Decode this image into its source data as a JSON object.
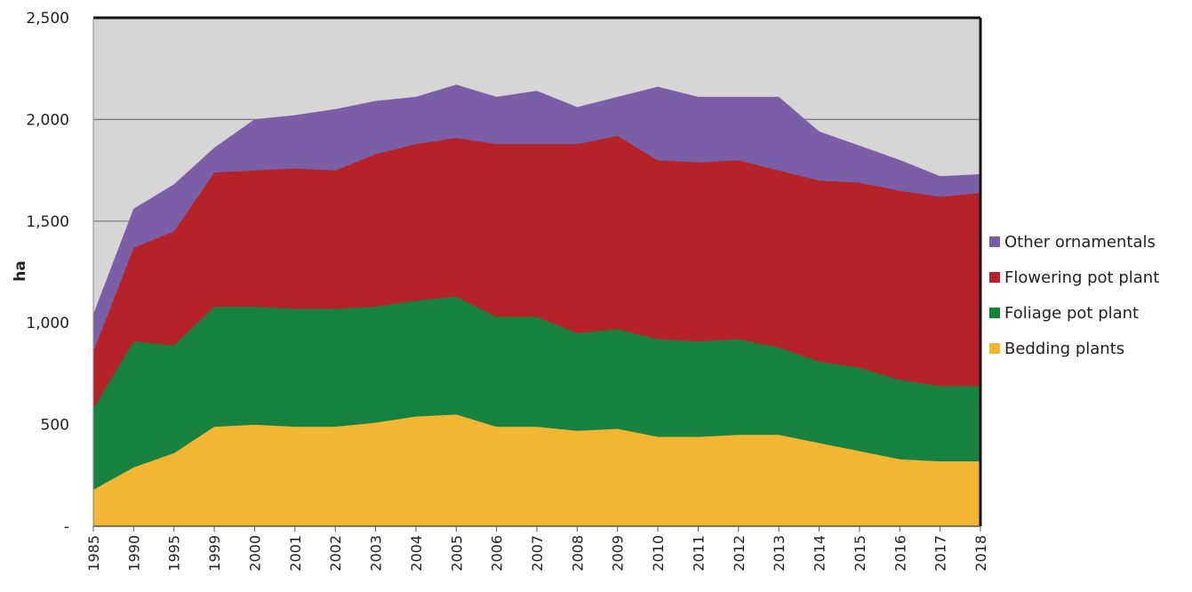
{
  "chart_data": {
    "type": "area",
    "stacked": true,
    "ylabel": "ha",
    "ylim": [
      0,
      2500
    ],
    "yticks": [
      {
        "value": 0,
        "label": "-"
      },
      {
        "value": 500,
        "label": "500"
      },
      {
        "value": 1000,
        "label": "1,000"
      },
      {
        "value": 1500,
        "label": "1,500"
      },
      {
        "value": 2000,
        "label": "2,000"
      },
      {
        "value": 2500,
        "label": "2,500"
      }
    ],
    "grid": true,
    "legend_position": "right",
    "categories": [
      "1985",
      "1990",
      "1995",
      "1999",
      "2000",
      "2001",
      "2002",
      "2003",
      "2004",
      "2005",
      "2006",
      "2007",
      "2008",
      "2009",
      "2010",
      "2011",
      "2012",
      "2013",
      "2014",
      "2015",
      "2016",
      "2017",
      "2018"
    ],
    "series": [
      {
        "name": "Bedding plants",
        "color": "#f2b632",
        "values": [
          180,
          290,
          360,
          490,
          500,
          490,
          490,
          510,
          540,
          550,
          490,
          490,
          470,
          480,
          440,
          440,
          450,
          450,
          410,
          370,
          330,
          320,
          320
        ]
      },
      {
        "name": "Foliage pot plant",
        "color": "#178240",
        "values": [
          400,
          620,
          530,
          590,
          580,
          580,
          580,
          570,
          570,
          580,
          540,
          540,
          480,
          490,
          480,
          470,
          470,
          430,
          400,
          410,
          390,
          370,
          370
        ]
      },
      {
        "name": "Flowering pot plant",
        "color": "#b52328",
        "values": [
          280,
          460,
          560,
          660,
          670,
          690,
          680,
          750,
          770,
          780,
          850,
          850,
          930,
          950,
          880,
          880,
          880,
          870,
          890,
          910,
          930,
          930,
          950
        ]
      },
      {
        "name": "Other ornamentals",
        "color": "#7a5fa6",
        "values": [
          180,
          190,
          230,
          120,
          250,
          260,
          300,
          260,
          230,
          260,
          230,
          260,
          180,
          190,
          360,
          320,
          310,
          360,
          240,
          180,
          150,
          100,
          90
        ]
      }
    ]
  }
}
